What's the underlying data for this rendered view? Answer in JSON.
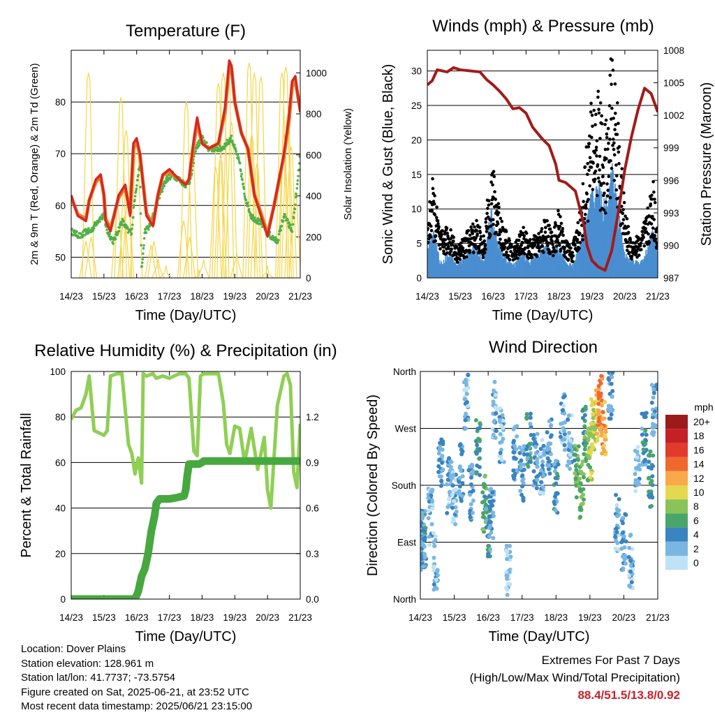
{
  "info": {
    "location": "Location: Dover Plains",
    "elevation": "Station elevation: 128.961 m",
    "latlon": "Station lat/lon: 41.7737; -73.5754",
    "created": "Figure created on Sat, 2025-06-21, at 23:52 UTC",
    "recent": "Most recent data timestamp: 2025/06/21 23:15:00"
  },
  "extremes": {
    "title": "Extremes For Past 7 Days",
    "subtitle": "(High/Low/Max Wind/Total Precipitation)",
    "values": "88.4/51.5/13.8/0.92"
  },
  "colors": {
    "temp2m": "#d42a20",
    "temp9m": "#f07a28",
    "dewpoint": "#52b046",
    "solar": "#f5d546",
    "gust": "#000000",
    "wind": "#4a8ed0",
    "pressure": "#a31a1a",
    "rh": "#8fcf54",
    "precip": "#47a83f"
  },
  "chart_data": [
    {
      "type": "line",
      "title": "Temperature (F)",
      "xlabel": "Time (Day/UTC)",
      "ylabel": "2m & 9m T (Red, Orange) & 2m Td (Green)",
      "ylabel_right": "Solar Insolation (Yellow)",
      "x_ticks": [
        "14/23",
        "15/23",
        "16/23",
        "17/23",
        "18/23",
        "19/23",
        "20/23",
        "21/23"
      ],
      "xlim": [
        0,
        7
      ],
      "ylim": [
        46,
        90
      ],
      "y_ticks": [
        50,
        60,
        70,
        80
      ],
      "ylim_right": [
        0,
        1110
      ],
      "y_ticks_right": [
        0,
        200,
        400,
        600,
        800,
        1000
      ],
      "series": [
        {
          "name": "2m T",
          "color_key": "temp2m",
          "axis": "left",
          "style": "line",
          "x": [
            0,
            0.2,
            0.45,
            0.55,
            0.75,
            0.9,
            1.0,
            1.05,
            1.2,
            1.45,
            1.65,
            1.8,
            1.9,
            2.0,
            2.1,
            2.3,
            2.5,
            2.65,
            2.8,
            3.0,
            3.3,
            3.5,
            3.6,
            3.75,
            3.85,
            4.0,
            4.2,
            4.5,
            4.7,
            4.83,
            4.9,
            5.0,
            5.2,
            5.4,
            5.6,
            5.75,
            6.0,
            6.2,
            6.5,
            6.65,
            6.75,
            6.85,
            7.0
          ],
          "y": [
            62,
            58,
            57,
            61,
            65,
            66,
            62,
            57,
            55,
            62,
            64,
            58,
            72,
            73,
            70,
            58,
            56,
            62,
            66,
            67,
            65,
            64,
            65,
            73,
            77,
            72,
            71,
            72,
            79,
            88,
            87,
            80,
            74,
            71,
            62,
            59,
            54,
            60,
            70,
            77,
            84,
            85,
            78
          ]
        },
        {
          "name": "9m T",
          "color_key": "temp9m",
          "axis": "left",
          "style": "line",
          "x": [
            0,
            0.2,
            0.45,
            0.55,
            0.75,
            0.9,
            1.0,
            1.05,
            1.2,
            1.45,
            1.65,
            1.8,
            1.9,
            2.0,
            2.1,
            2.3,
            2.5,
            2.65,
            2.8,
            3.0,
            3.3,
            3.5,
            3.6,
            3.75,
            3.85,
            4.0,
            4.2,
            4.5,
            4.7,
            4.83,
            4.9,
            5.0,
            5.2,
            5.4,
            5.6,
            5.75,
            6.0,
            6.2,
            6.5,
            6.65,
            6.75,
            6.85,
            7.0
          ],
          "y": [
            61.5,
            58.3,
            57.4,
            61,
            64.5,
            65.5,
            62,
            57.5,
            55.5,
            61.5,
            63.5,
            58.5,
            71,
            72.5,
            69.8,
            58.5,
            56.3,
            62,
            65.8,
            66.5,
            65,
            64.2,
            65,
            72,
            76,
            72,
            71,
            72,
            78,
            87,
            86.5,
            80,
            74,
            71,
            62,
            59.5,
            54.5,
            60,
            69.5,
            76,
            83,
            84,
            78.5
          ]
        },
        {
          "name": "2m Td",
          "color_key": "dewpoint",
          "axis": "left",
          "style": "dots",
          "x": [
            0,
            0.3,
            0.45,
            0.6,
            0.8,
            1.0,
            1.1,
            1.3,
            1.55,
            1.75,
            1.85,
            1.95,
            2.1,
            2.15,
            2.25,
            2.4,
            2.55,
            2.7,
            2.9,
            3.1,
            3.3,
            3.5,
            3.65,
            3.8,
            4.0,
            4.2,
            4.4,
            4.6,
            4.75,
            4.9,
            5.0,
            5.15,
            5.3,
            5.5,
            5.7,
            5.9,
            6.1,
            6.3,
            6.5,
            6.6,
            6.75,
            6.9,
            7.0
          ],
          "y": [
            55,
            54,
            55,
            55,
            57,
            58,
            55,
            53,
            57,
            55,
            55,
            62,
            68,
            47,
            55,
            56,
            59,
            62,
            65,
            66,
            65,
            64,
            65,
            71,
            73,
            71,
            71,
            71,
            72,
            73,
            71,
            68,
            62,
            58,
            57,
            56,
            54,
            53,
            58,
            57,
            55,
            63,
            70
          ]
        },
        {
          "name": "Solar",
          "color_key": "solar",
          "axis": "right",
          "style": "spikes",
          "x": [
            0.45,
            0.53,
            0.61,
            1.42,
            1.52,
            1.62,
            1.68,
            1.74,
            2.0,
            2.44,
            2.53,
            2.66,
            2.9,
            3.44,
            3.52,
            3.62,
            3.7,
            3.9,
            4.05,
            4.42,
            4.5,
            4.57,
            4.65,
            4.8,
            4.9,
            5.06,
            5.44,
            5.52,
            5.6,
            5.68,
            5.8,
            6.0,
            6.44,
            6.5,
            6.56,
            6.62,
            6.72,
            6.85
          ],
          "y": [
            180,
            1000,
            200,
            350,
            880,
            300,
            720,
            400,
            660,
            160,
            180,
            90,
            60,
            280,
            860,
            200,
            650,
            40,
            90,
            540,
            950,
            600,
            1000,
            980,
            760,
            120,
            1050,
            700,
            1000,
            560,
            980,
            60,
            1000,
            700,
            1030,
            800,
            640,
            420
          ]
        }
      ]
    },
    {
      "type": "scatter",
      "title": "Winds (mph) & Pressure (mb)",
      "xlabel": "Time (Day/UTC)",
      "ylabel": "Sonic Wind & Gust (Blue, Black)",
      "ylabel_right": "Station Pressure (Maroon)",
      "x_ticks": [
        "14/23",
        "15/23",
        "16/23",
        "17/23",
        "18/23",
        "19/23",
        "20/23",
        "21/23"
      ],
      "xlim": [
        0,
        7
      ],
      "ylim": [
        0,
        33
      ],
      "y_ticks": [
        0,
        5,
        10,
        15,
        20,
        25,
        30
      ],
      "ylim_right": [
        987,
        1008
      ],
      "y_ticks_right": [
        987,
        990,
        993,
        996,
        999,
        1002,
        1005,
        1008
      ],
      "series": [
        {
          "name": "Gust",
          "color_key": "gust",
          "axis": "left",
          "style": "dots",
          "x": [
            0,
            0.15,
            0.4,
            0.7,
            0.9,
            1.2,
            1.5,
            1.7,
            1.85,
            1.95,
            2.1,
            2.3,
            2.6,
            2.9,
            3.1,
            3.4,
            3.6,
            3.8,
            4.0,
            4.2,
            4.4,
            4.55,
            4.7,
            4.85,
            5.0,
            5.2,
            5.35,
            5.5,
            5.6,
            5.8,
            6.0,
            6.2,
            6.5,
            6.7,
            6.85,
            7.0
          ],
          "y": [
            6,
            12,
            5,
            6,
            3,
            5,
            7,
            4,
            10,
            14,
            11,
            6,
            3,
            6,
            4,
            5,
            7,
            5,
            8,
            4,
            3,
            6,
            10,
            17,
            22,
            24,
            18,
            20,
            31,
            20,
            8,
            4,
            5,
            8,
            12,
            6
          ]
        },
        {
          "name": "Sonic Wind",
          "color_key": "wind",
          "axis": "left",
          "style": "band",
          "x": [
            0,
            0.15,
            0.4,
            0.7,
            0.9,
            1.2,
            1.5,
            1.7,
            1.85,
            1.95,
            2.1,
            2.3,
            2.6,
            2.9,
            3.1,
            3.4,
            3.6,
            3.8,
            4.0,
            4.2,
            4.4,
            4.55,
            4.7,
            4.85,
            5.0,
            5.2,
            5.35,
            5.5,
            5.6,
            5.8,
            6.0,
            6.2,
            6.5,
            6.7,
            6.85,
            7.0
          ],
          "y": [
            3,
            6,
            2,
            3,
            1.5,
            3,
            4,
            2,
            6,
            8,
            5,
            3,
            1.5,
            3,
            2,
            3,
            4,
            3,
            4,
            2,
            1.5,
            3,
            5,
            8,
            10,
            11,
            9,
            9,
            13.8,
            8,
            3,
            2,
            2,
            4,
            6,
            3
          ]
        },
        {
          "name": "Pressure",
          "color_key": "pressure",
          "axis": "right",
          "style": "line",
          "x": [
            0,
            0.15,
            0.3,
            0.6,
            0.8,
            1.0,
            1.3,
            1.6,
            1.8,
            2.0,
            2.2,
            2.4,
            2.6,
            2.8,
            3.0,
            3.2,
            3.5,
            3.7,
            3.9,
            4.0,
            4.2,
            4.5,
            4.6,
            4.75,
            4.85,
            5.0,
            5.2,
            5.4,
            5.6,
            5.8,
            6.0,
            6.2,
            6.4,
            6.6,
            6.8,
            7.0
          ],
          "y": [
            1004.8,
            1005.2,
            1006.2,
            1006,
            1006.4,
            1006.2,
            1006.1,
            1006,
            1005.3,
            1004.8,
            1004.2,
            1003.5,
            1002.6,
            1002.7,
            1002.2,
            1000.9,
            999.8,
            999.2,
            997.5,
            996,
            995.8,
            995,
            993.8,
            992,
            990,
            988.6,
            988,
            987.7,
            989.5,
            993,
            997,
            1000,
            1002.5,
            1004.5,
            1004,
            1002.3
          ]
        }
      ]
    },
    {
      "type": "line",
      "title": "Relative Humidity (%) & Precipitation (in)",
      "xlabel": "Time (Day/UTC)",
      "ylabel": "Percent & Total Rainfall",
      "x_ticks": [
        "14/23",
        "15/23",
        "16/23",
        "17/23",
        "18/23",
        "19/23",
        "20/23",
        "21/23"
      ],
      "xlim": [
        0,
        7
      ],
      "ylim": [
        0,
        100
      ],
      "y_ticks": [
        0,
        20,
        40,
        60,
        80,
        100
      ],
      "ylim_right": [
        0,
        1.5
      ],
      "y_ticks_right": [
        "0.0",
        "0.3",
        "0.6",
        "0.9",
        "1.2"
      ],
      "series": [
        {
          "name": "RH",
          "color_key": "rh",
          "axis": "left",
          "style": "line",
          "x": [
            0,
            0.15,
            0.3,
            0.45,
            0.55,
            0.7,
            0.85,
            1.0,
            1.1,
            1.2,
            1.4,
            1.55,
            1.75,
            1.85,
            1.95,
            2.05,
            2.15,
            2.2,
            2.3,
            2.5,
            2.6,
            2.8,
            3.0,
            3.3,
            3.5,
            3.6,
            3.75,
            3.85,
            3.95,
            4.05,
            4.2,
            4.5,
            4.65,
            4.75,
            4.85,
            5.0,
            5.15,
            5.3,
            5.5,
            5.7,
            5.9,
            6.0,
            6.1,
            6.3,
            6.5,
            6.6,
            6.7,
            6.8,
            6.9,
            7.0
          ],
          "y": [
            79,
            83,
            84,
            90,
            98,
            74,
            73,
            72,
            74,
            98,
            99,
            99,
            68,
            64,
            55,
            62,
            51,
            99,
            98,
            99,
            97,
            98,
            97,
            99,
            99,
            97,
            65,
            63,
            98,
            99,
            99,
            99,
            86,
            68,
            64,
            76,
            75,
            60,
            75,
            57,
            71,
            48,
            40,
            85,
            98,
            99,
            94,
            56,
            49,
            77
          ]
        },
        {
          "name": "Precipitation",
          "color_key": "precip",
          "axis": "right",
          "style": "line",
          "x": [
            0,
            0.5,
            1.0,
            1.5,
            1.95,
            2.05,
            2.15,
            2.25,
            2.35,
            2.45,
            2.55,
            2.6,
            2.7,
            3.0,
            3.25,
            3.45,
            3.5,
            3.55,
            3.6,
            3.9,
            4.0,
            4.05,
            4.2,
            5.0,
            6.0,
            7.0
          ],
          "y": [
            0,
            0,
            0,
            0,
            0,
            0.05,
            0.15,
            0.2,
            0.3,
            0.45,
            0.55,
            0.63,
            0.66,
            0.66,
            0.67,
            0.68,
            0.72,
            0.82,
            0.89,
            0.89,
            0.9,
            0.91,
            0.91,
            0.91,
            0.91,
            0.91
          ]
        }
      ]
    },
    {
      "type": "scatter",
      "title": "Wind Direction",
      "xlabel": "Time (Day/UTC)",
      "ylabel": "Direction (Colored By Speed)",
      "x_ticks": [
        "14/23",
        "15/23",
        "16/23",
        "17/23",
        "18/23",
        "19/23",
        "20/23",
        "21/23"
      ],
      "xlim": [
        0,
        7
      ],
      "ylim": [
        0,
        360
      ],
      "y_ticks": [
        "North",
        "East",
        "South",
        "West",
        "North"
      ],
      "legend_title": "mph",
      "legend_labels": [
        "20+",
        "18",
        "16",
        "14",
        "12",
        "10",
        "8",
        "6",
        "4",
        "2",
        "0"
      ],
      "legend_colors": [
        "#9b1b1b",
        "#c52026",
        "#e03b2c",
        "#f0682e",
        "#f9a84a",
        "#e6d84e",
        "#8ac35a",
        "#4aa56a",
        "#3a84c0",
        "#7ab6e2",
        "#bfe2f6"
      ],
      "series": [
        {
          "name": "Direction",
          "axis": "left",
          "style": "dots",
          "x": [
            0.05,
            0.1,
            0.3,
            0.45,
            0.6,
            0.85,
            1.0,
            1.2,
            1.35,
            1.5,
            1.7,
            1.9,
            2.0,
            2.1,
            2.2,
            2.4,
            2.6,
            2.8,
            3.0,
            3.2,
            3.4,
            3.6,
            3.8,
            4.0,
            4.2,
            4.4,
            4.6,
            4.75,
            4.85,
            5.0,
            5.1,
            5.2,
            5.3,
            5.4,
            5.6,
            5.8,
            6.0,
            6.2,
            6.4,
            6.6,
            6.8,
            6.9
          ],
          "y": [
            90,
            95,
            130,
            60,
            220,
            180,
            160,
            200,
            310,
            170,
            240,
            150,
            110,
            130,
            300,
            260,
            40,
            230,
            200,
            250,
            220,
            210,
            240,
            180,
            280,
            250,
            200,
            170,
            260,
            230,
            280,
            290,
            310,
            270,
            330,
            120,
            90,
            60,
            200,
            250,
            190,
            300
          ],
          "speed": [
            3,
            4,
            2,
            2,
            3,
            2,
            2,
            3,
            2,
            3,
            5,
            6,
            4,
            3,
            2,
            2,
            1,
            3,
            3,
            4,
            3,
            2,
            3,
            4,
            2,
            2,
            6,
            7,
            6,
            8,
            9,
            10,
            13,
            12,
            3,
            2,
            3,
            2,
            2,
            4,
            5,
            3
          ]
        }
      ]
    }
  ]
}
